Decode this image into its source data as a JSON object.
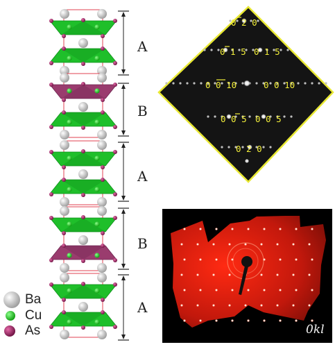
{
  "structure": {
    "blocks": [
      {
        "label": "A",
        "tets": "green-pair"
      },
      {
        "label": "B",
        "tets": "purple-top"
      },
      {
        "label": "A",
        "tets": "green-pair"
      },
      {
        "label": "B",
        "tets": "purple-bottom"
      },
      {
        "label": "A",
        "tets": "green-pair"
      }
    ],
    "colors": {
      "green": "#1fbf2a",
      "green_dark": "#0f8f1a",
      "purple": "#9a3c6e",
      "purple_dark": "#6e2450",
      "cell_line": "#e04050",
      "arrow": "#222222"
    }
  },
  "legend": {
    "items": [
      {
        "label": "Ba",
        "color": "#d8d8d8"
      },
      {
        "label": "Cu",
        "color": "#22c922"
      },
      {
        "label": "As",
        "color": "#a0226a"
      }
    ]
  },
  "diffraction": {
    "frame_color": "#e8e832",
    "label_color": "#f2ee3a",
    "indices": [
      "0 2 0",
      "0 1 5",
      "0 1 5",
      "0 0 10",
      "0 0 10",
      "0 0 5",
      "0 0 5",
      "0 2 0"
    ]
  },
  "laue": {
    "label": "0kl",
    "background": "#cc1b10"
  }
}
